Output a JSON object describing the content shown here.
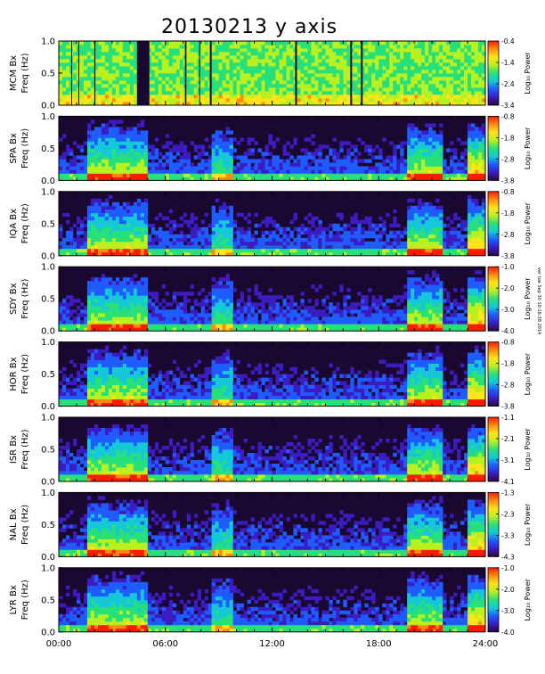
{
  "title": "20130213 y axis",
  "stamp": "ver tue Sep 30 10:16:38 2014",
  "chart_data": {
    "type": "heatmap",
    "title": "20130213 y axis",
    "xlabel": "",
    "x_ticks": [
      "00:00",
      "06:00",
      "12:00",
      "18:00",
      "24:00"
    ],
    "xlim_hours": [
      0,
      24
    ],
    "colorbar_label": "Log₁₀ Power",
    "panels": [
      {
        "station": "MCM",
        "ylabel_top": "MCM Bx",
        "ylabel_bottom": "Freq (Hz)",
        "ylim": [
          0,
          1.0
        ],
        "y_ticks": [
          "0.0",
          "0.5",
          "1.0"
        ],
        "colorbar_ticks": [
          "-0.4",
          "-1.4",
          "-2.4",
          "-3.4"
        ],
        "cmin": -3.4,
        "cmax": -0.4
      },
      {
        "station": "SPA",
        "ylabel_top": "SPA Bx",
        "ylabel_bottom": "Freq (Hz)",
        "ylim": [
          0,
          1.0
        ],
        "y_ticks": [
          "0.0",
          "0.5",
          "1.0"
        ],
        "colorbar_ticks": [
          "-0.8",
          "-1.8",
          "-2.8",
          "-3.8"
        ],
        "cmin": -3.8,
        "cmax": -0.8
      },
      {
        "station": "IQA",
        "ylabel_top": "IQA Bx",
        "ylabel_bottom": "Freq (Hz)",
        "ylim": [
          0,
          1.0
        ],
        "y_ticks": [
          "0.0",
          "0.5",
          "1.0"
        ],
        "colorbar_ticks": [
          "-0.8",
          "-1.8",
          "-2.8",
          "-3.8"
        ],
        "cmin": -3.8,
        "cmax": -0.8
      },
      {
        "station": "SDY",
        "ylabel_top": "SDY Bx",
        "ylabel_bottom": "Freq (Hz)",
        "ylim": [
          0,
          1.0
        ],
        "y_ticks": [
          "0.0",
          "0.5",
          "1.0"
        ],
        "colorbar_ticks": [
          "-1.0",
          "-2.0",
          "-3.0",
          "-4.0"
        ],
        "cmin": -4.0,
        "cmax": -1.0
      },
      {
        "station": "HOR",
        "ylabel_top": "HOR Bx",
        "ylabel_bottom": "Freq (Hz)",
        "ylim": [
          0,
          1.0
        ],
        "y_ticks": [
          "0.0",
          "0.5",
          "1.0"
        ],
        "colorbar_ticks": [
          "-0.8",
          "-1.8",
          "-2.8",
          "-3.8"
        ],
        "cmin": -3.8,
        "cmax": -0.8
      },
      {
        "station": "ISR",
        "ylabel_top": "ISR Bx",
        "ylabel_bottom": "Freq (Hz)",
        "ylim": [
          0,
          1.0
        ],
        "y_ticks": [
          "0.0",
          "0.5",
          "1.0"
        ],
        "colorbar_ticks": [
          "-1.1",
          "-2.1",
          "-3.1",
          "-4.1"
        ],
        "cmin": -4.1,
        "cmax": -1.1
      },
      {
        "station": "NAL",
        "ylabel_top": "NAL Bx",
        "ylabel_bottom": "Freq (Hz)",
        "ylim": [
          0,
          1.0
        ],
        "y_ticks": [
          "0.0",
          "0.5",
          "1.0"
        ],
        "colorbar_ticks": [
          "-1.3",
          "-2.3",
          "-3.3",
          "-4.3"
        ],
        "cmin": -4.3,
        "cmax": -1.3
      },
      {
        "station": "LYR",
        "ylabel_top": "LYR Bx",
        "ylabel_bottom": "Freq (Hz)",
        "ylim": [
          0,
          1.0
        ],
        "y_ticks": [
          "0.0",
          "0.5",
          "1.0"
        ],
        "colorbar_ticks": [
          "-1.0",
          "-2.0",
          "-3.0",
          "-4.0"
        ],
        "cmin": -4.0,
        "cmax": -1.0
      }
    ],
    "colormap": [
      "#2a0a3a",
      "#3b1cc0",
      "#1f5cff",
      "#15c8d8",
      "#28e07a",
      "#b8f020",
      "#ffe41a",
      "#ff8c10",
      "#ff1a00"
    ]
  }
}
